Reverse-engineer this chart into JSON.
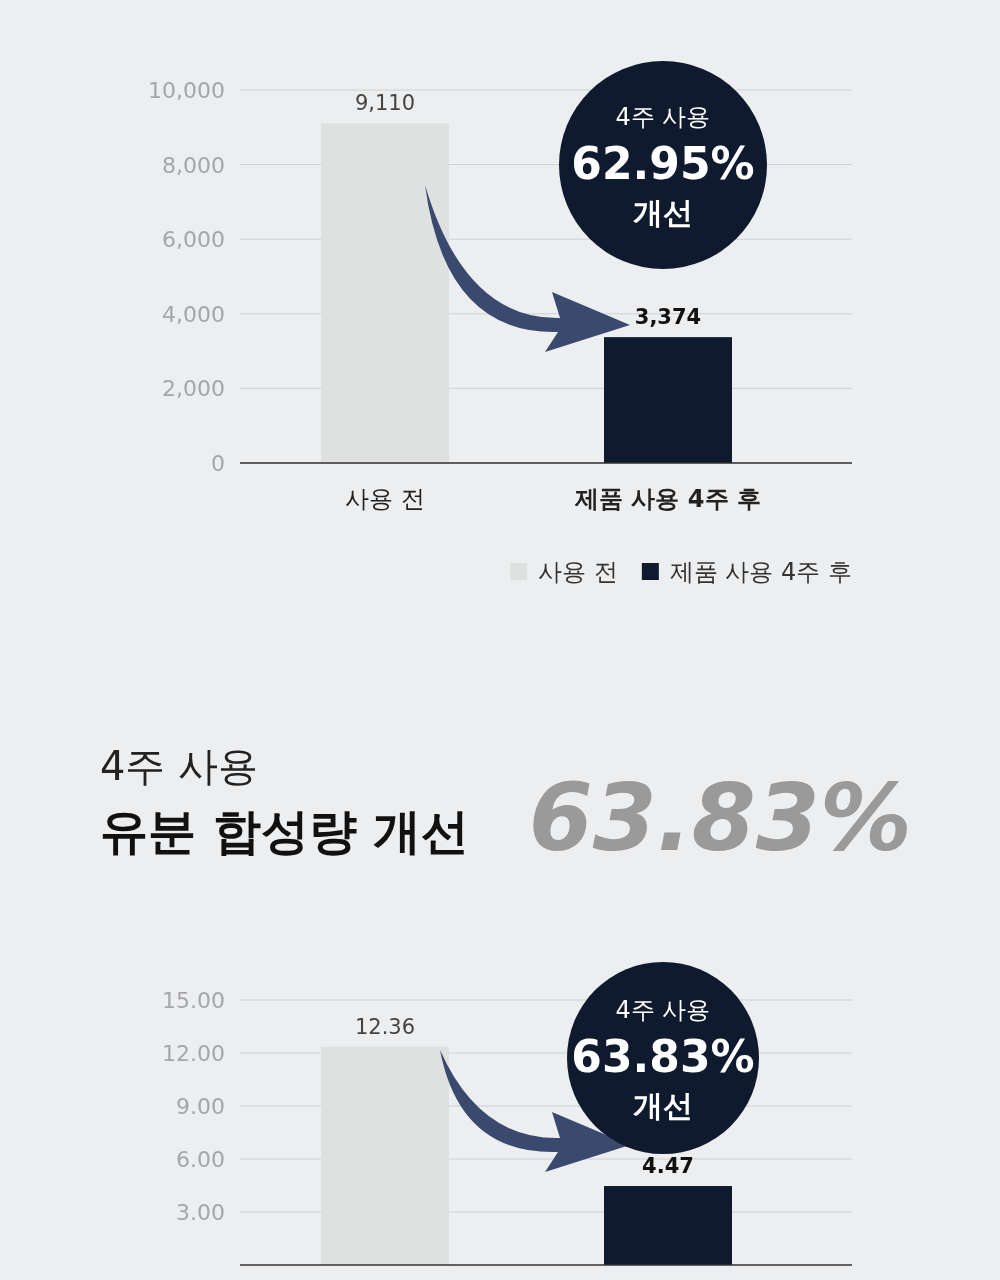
{
  "chart_data": [
    {
      "type": "bar",
      "categories": [
        "사용 전",
        "제품 사용 4주 후"
      ],
      "series": [
        {
          "name": "사용 전",
          "color": "#dfe1e0",
          "values": [
            9110,
            null
          ],
          "value_labels": [
            "9,110",
            null
          ]
        },
        {
          "name": "제품 사용 4주 후",
          "color": "#0f1a2e",
          "values": [
            null,
            3374
          ],
          "value_labels": [
            null,
            "3,374"
          ]
        }
      ],
      "ylim": [
        0,
        10000
      ],
      "yticks": [
        0,
        {
          "value": 2000,
          "label": "2,000"
        },
        {
          "value": 4000,
          "label": "4,000"
        },
        {
          "value": 6000,
          "label": "6,000"
        },
        {
          "value": 8000,
          "label": "8,000"
        },
        {
          "value": 10000,
          "label": "10,000"
        }
      ],
      "grid": "y",
      "legend": "bottom right",
      "annotations": [
        "4주 사용",
        "62.95%",
        "개선"
      ]
    },
    {
      "type": "bar",
      "title": "유분 합성량 개선",
      "subtitle": "4주 사용",
      "categories": [
        null,
        null
      ],
      "values": [
        12.36,
        4.47
      ],
      "colors": [
        "#dfe1e0",
        "#0f1a2e"
      ],
      "value_labels": [
        "12.36",
        "4.47"
      ],
      "ylim": [
        0,
        15
      ],
      "yticks": [
        {
          "value": 3,
          "label": "3.00"
        },
        {
          "value": 6,
          "label": "6.00"
        },
        {
          "value": 9,
          "label": "9.00"
        },
        {
          "value": 12,
          "label": "12.00"
        },
        {
          "value": 15,
          "label": "15.00"
        }
      ],
      "grid": "y",
      "annotations": [
        "63.83%",
        "4주 사용",
        "63.83%",
        "개선"
      ]
    }
  ]
}
